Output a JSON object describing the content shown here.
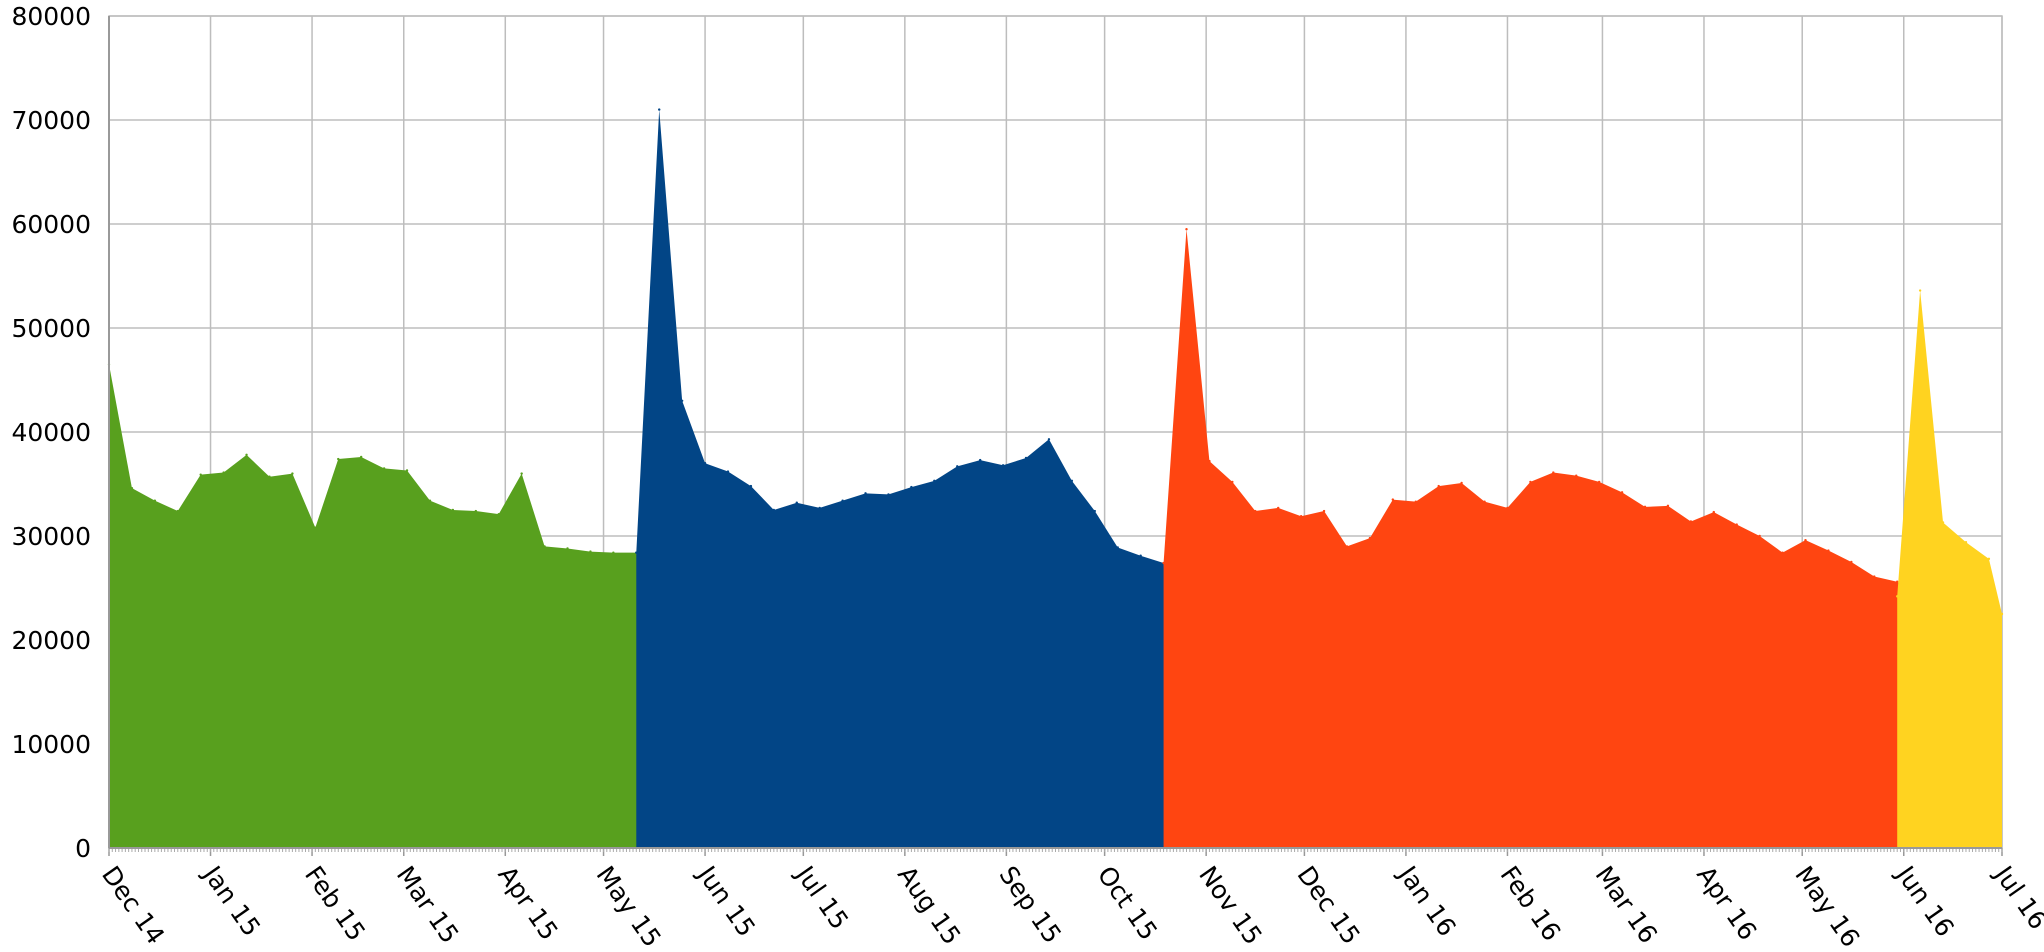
{
  "chart_data": {
    "type": "area",
    "title": "",
    "xlabel": "",
    "ylabel": "",
    "ylim": [
      0,
      80000
    ],
    "xlim": [
      "2014-12-01",
      "2016-07-01"
    ],
    "grid": true,
    "legend": "none",
    "y_ticks": [
      0,
      10000,
      20000,
      30000,
      40000,
      50000,
      60000,
      70000,
      80000
    ],
    "y_tick_labels": [
      "0",
      "10000",
      "20000",
      "30000",
      "40000",
      "50000",
      "60000",
      "70000",
      "80000"
    ],
    "x_tick_dates": [
      "2014-12-01",
      "2015-01-01",
      "2015-02-01",
      "2015-03-01",
      "2015-04-01",
      "2015-05-01",
      "2015-06-01",
      "2015-07-01",
      "2015-08-01",
      "2015-09-01",
      "2015-10-01",
      "2015-11-01",
      "2015-12-01",
      "2016-01-01",
      "2016-02-01",
      "2016-03-01",
      "2016-04-01",
      "2016-05-01",
      "2016-06-01",
      "2016-07-01"
    ],
    "x_tick_labels": [
      "Dec 14",
      "Jan 15",
      "Feb 15",
      "Mar 15",
      "Apr 15",
      "May 15",
      "Jun 15",
      "Jul 15",
      "Aug 15",
      "Sep 15",
      "Oct 15",
      "Nov 15",
      "Dec 15",
      "Jan 16",
      "Feb 16",
      "Mar 16",
      "Apr 16",
      "May 16",
      "Jun 16",
      "Jul 16"
    ],
    "series": [
      {
        "color": "#58a01e",
        "x": [
          "2014-12-01",
          "2014-12-08",
          "2014-12-15",
          "2014-12-22",
          "2014-12-29",
          "2015-01-05",
          "2015-01-12",
          "2015-01-19",
          "2015-01-26",
          "2015-02-02",
          "2015-02-09",
          "2015-02-16",
          "2015-02-23",
          "2015-03-02",
          "2015-03-09",
          "2015-03-16",
          "2015-03-23",
          "2015-03-30",
          "2015-04-06",
          "2015-04-13",
          "2015-04-20",
          "2015-04-27",
          "2015-05-04",
          "2015-05-11",
          "2015-05-18",
          "2015-05-25",
          "2015-06-01"
        ],
        "values": [
          46500,
          34600,
          33400,
          32400,
          35900,
          36100,
          37800,
          35700,
          36000,
          30800,
          37400,
          37600,
          36500,
          36300,
          33400,
          32500,
          32400,
          32100,
          36000,
          29000,
          28800,
          28500,
          28400,
          28400,
          3000,
          0,
          0
        ]
      },
      {
        "color": "#024586",
        "x": [
          "2015-05-11",
          "2015-05-18",
          "2015-05-25",
          "2015-06-01",
          "2015-06-08",
          "2015-06-15",
          "2015-06-22",
          "2015-06-29",
          "2015-07-06",
          "2015-07-13",
          "2015-07-20",
          "2015-07-27",
          "2015-08-03",
          "2015-08-10",
          "2015-08-17",
          "2015-08-24",
          "2015-08-31",
          "2015-09-07",
          "2015-09-14",
          "2015-09-21",
          "2015-09-28",
          "2015-10-05",
          "2015-10-12",
          "2015-10-19",
          "2015-10-26",
          "2015-11-02",
          "2015-11-09"
        ],
        "values": [
          28400,
          71000,
          43000,
          37000,
          36200,
          34800,
          32500,
          33200,
          32700,
          33400,
          34100,
          34000,
          34700,
          35300,
          36700,
          37300,
          36800,
          37500,
          39300,
          35300,
          32400,
          28900,
          28100,
          27400,
          3200,
          0,
          0
        ]
      },
      {
        "color": "#ff4511",
        "x": [
          "2015-10-19",
          "2015-10-26",
          "2015-11-02",
          "2015-11-09",
          "2015-11-16",
          "2015-11-23",
          "2015-11-30",
          "2015-12-07",
          "2015-12-14",
          "2015-12-21",
          "2015-12-28",
          "2016-01-04",
          "2016-01-11",
          "2016-01-18",
          "2016-01-25",
          "2016-02-01",
          "2016-02-08",
          "2016-02-15",
          "2016-02-22",
          "2016-02-29",
          "2016-03-07",
          "2016-03-14",
          "2016-03-21",
          "2016-03-28",
          "2016-04-04",
          "2016-04-11",
          "2016-04-18",
          "2016-04-25",
          "2016-05-02",
          "2016-05-09",
          "2016-05-16",
          "2016-05-23",
          "2016-05-30",
          "2016-06-06",
          "2016-06-13",
          "2016-06-20"
        ],
        "values": [
          27400,
          59500,
          37200,
          35200,
          32400,
          32700,
          31900,
          32400,
          29000,
          29800,
          33500,
          33300,
          34800,
          35100,
          33300,
          32700,
          35200,
          36100,
          35800,
          35200,
          34200,
          32800,
          32900,
          31400,
          32300,
          31100,
          30000,
          28400,
          29600,
          28600,
          27500,
          26100,
          25600,
          24200,
          3000,
          0
        ]
      },
      {
        "color": "#ffd320",
        "x": [
          "2016-05-30",
          "2016-06-06",
          "2016-06-13",
          "2016-06-20",
          "2016-06-27",
          "2016-07-01"
        ],
        "values": [
          24200,
          53600,
          31300,
          29400,
          27800,
          22500
        ]
      }
    ]
  }
}
